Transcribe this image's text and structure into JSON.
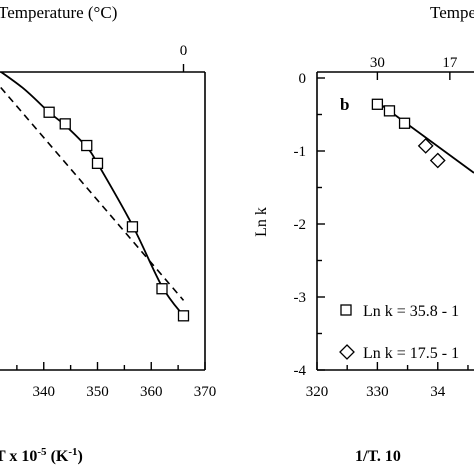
{
  "chart_data": [
    {
      "type": "scatter",
      "title": "",
      "top_axis_label": "Temperature (°C)",
      "top_ticks": [
        {
          "label": "0",
          "x": 366
        }
      ],
      "xlabel": "T x 10",
      "xlabel_sup1": "-5",
      "xlabel_unit": " (K",
      "xlabel_sup2": "-1",
      "xlabel_close": ")",
      "xlim": [
        330,
        370
      ],
      "x_ticks": [
        "340",
        "350",
        "360",
        "370"
      ],
      "ylim": [
        -4.2,
        -0.35
      ],
      "series": [
        {
          "marker": "square",
          "x": [
            341,
            344,
            348,
            350,
            356.5,
            362,
            366
          ],
          "y": [
            -0.87,
            -1.02,
            -1.3,
            -1.53,
            -2.35,
            -3.15,
            -3.5
          ]
        }
      ],
      "fit_curve": {
        "x": [
          330,
          336,
          341,
          344,
          348,
          350,
          356.5,
          362,
          366
        ],
        "y": [
          -0.25,
          -0.55,
          -0.87,
          -1.04,
          -1.32,
          -1.53,
          -2.33,
          -3.12,
          -3.5
        ]
      },
      "fit_line": {
        "x": [
          332,
          366
        ],
        "y": [
          -0.55,
          -3.3
        ]
      }
    },
    {
      "type": "scatter",
      "title": "",
      "panel_label": "b",
      "top_axis_label": "Tempe",
      "top_ticks": [
        {
          "label": "30",
          "x": 330
        },
        {
          "label": "17",
          "x": 342
        }
      ],
      "xlabel": "1/T. 10",
      "xlim": [
        320,
        346
      ],
      "x_ticks": [
        "320",
        "330",
        "34"
      ],
      "ylabel": "Ln k",
      "ylim": [
        -4,
        0
      ],
      "y_ticks": [
        "0",
        "-1",
        "-2",
        "-3",
        "-4"
      ],
      "series": [
        {
          "name": "Ln k = 35.8 - 1",
          "marker": "square",
          "x": [
            330,
            332,
            334.5
          ],
          "y": [
            -0.36,
            -0.45,
            -0.62
          ]
        },
        {
          "name": "Ln k = 17.5 - 1",
          "marker": "diamond",
          "x": [
            338,
            340
          ],
          "y": [
            -0.93,
            -1.13
          ]
        }
      ],
      "fit_line": {
        "x": [
          329.5,
          346
        ],
        "y": [
          -0.3,
          -1.3
        ]
      }
    }
  ]
}
